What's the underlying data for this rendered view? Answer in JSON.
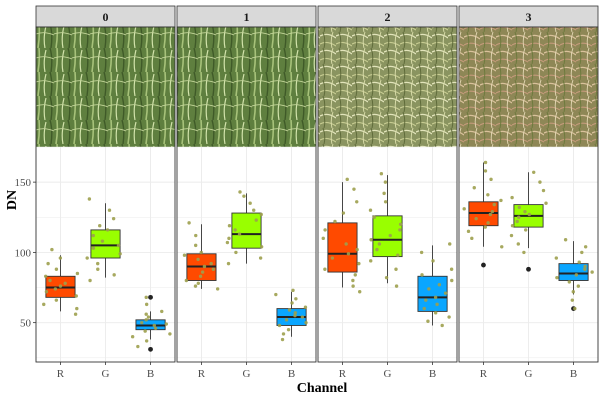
{
  "chart_data": {
    "type": "boxplot",
    "xlabel": "Channel",
    "ylabel": "DN",
    "ylim": [
      22,
      175
    ],
    "yticks": [
      50,
      100,
      150
    ],
    "categories": [
      "R",
      "G",
      "B"
    ],
    "grid": true,
    "colors": {
      "R": "#ff4a00",
      "G": "#99ff00",
      "B": "#0aa6ff",
      "jitter": "#9da04e",
      "outlier": "#222222"
    },
    "panels": [
      {
        "label": "0",
        "image": "crop-canopy-photo",
        "boxes": [
          {
            "channel": "R",
            "whisker_low": 58,
            "q1": 68,
            "median": 75,
            "q3": 83,
            "whisker_high": 98,
            "outliers": []
          },
          {
            "channel": "G",
            "whisker_low": 82,
            "q1": 96,
            "median": 105,
            "q3": 116,
            "whisker_high": 135,
            "outliers": []
          },
          {
            "channel": "B",
            "whisker_low": 38,
            "q1": 45,
            "median": 48,
            "q3": 52,
            "whisker_high": 58,
            "outliers": [
              31,
              68
            ]
          }
        ],
        "points": {
          "R": [
            56,
            60,
            63,
            66,
            69,
            72,
            74,
            76,
            78,
            80,
            83,
            85,
            88,
            92,
            96,
            102
          ],
          "G": [
            80,
            84,
            88,
            92,
            96,
            99,
            103,
            105,
            108,
            112,
            116,
            119,
            124,
            130,
            138
          ],
          "B": [
            33,
            37,
            40,
            42,
            44,
            46,
            48,
            49,
            50,
            52,
            54,
            56,
            58,
            63,
            68
          ]
        }
      },
      {
        "label": "1",
        "image": "crop-canopy-photo",
        "boxes": [
          {
            "channel": "R",
            "whisker_low": 74,
            "q1": 80,
            "median": 90,
            "q3": 99,
            "whisker_high": 120,
            "outliers": []
          },
          {
            "channel": "G",
            "whisker_low": 92,
            "q1": 103,
            "median": 113,
            "q3": 128,
            "whisker_high": 142,
            "outliers": []
          },
          {
            "channel": "B",
            "whisker_low": 40,
            "q1": 48,
            "median": 54,
            "q3": 60,
            "whisker_high": 72,
            "outliers": []
          }
        ],
        "points": {
          "R": [
            74,
            76,
            78,
            80,
            83,
            86,
            88,
            90,
            92,
            95,
            98,
            100,
            105,
            112,
            121
          ],
          "G": [
            92,
            96,
            100,
            104,
            107,
            110,
            113,
            116,
            119,
            123,
            127,
            130,
            135,
            140,
            143
          ],
          "B": [
            38,
            42,
            45,
            48,
            50,
            52,
            54,
            55,
            57,
            59,
            61,
            64,
            67,
            70,
            73
          ]
        }
      },
      {
        "label": "2",
        "image": "crop-canopy-photo",
        "boxes": [
          {
            "channel": "R",
            "whisker_low": 75,
            "q1": 86,
            "median": 99,
            "q3": 121,
            "whisker_high": 150,
            "outliers": []
          },
          {
            "channel": "G",
            "whisker_low": 78,
            "q1": 97,
            "median": 109,
            "q3": 126,
            "whisker_high": 155,
            "outliers": []
          },
          {
            "channel": "B",
            "whisker_low": 48,
            "q1": 58,
            "median": 68,
            "q3": 83,
            "whisker_high": 105,
            "outliers": []
          }
        ],
        "points": {
          "R": [
            72,
            76,
            80,
            84,
            88,
            92,
            96,
            99,
            102,
            106,
            110,
            116,
            122,
            128,
            136,
            145,
            152
          ],
          "G": [
            76,
            82,
            88,
            94,
            98,
            102,
            106,
            109,
            112,
            116,
            120,
            125,
            130,
            136,
            142,
            150,
            156
          ],
          "B": [
            48,
            51,
            54,
            57,
            60,
            63,
            66,
            68,
            71,
            74,
            77,
            80,
            84,
            88,
            94,
            100,
            106
          ]
        }
      },
      {
        "label": "3",
        "image": "crop-canopy-photo",
        "boxes": [
          {
            "channel": "R",
            "whisker_low": 104,
            "q1": 119,
            "median": 128,
            "q3": 136,
            "whisker_high": 164,
            "outliers": [
              91
            ]
          },
          {
            "channel": "G",
            "whisker_low": 103,
            "q1": 118,
            "median": 126,
            "q3": 134,
            "whisker_high": 157,
            "outliers": [
              88
            ]
          },
          {
            "channel": "B",
            "whisker_low": 70,
            "q1": 80,
            "median": 85,
            "q3": 92,
            "whisker_high": 108,
            "outliers": [
              60
            ]
          }
        ],
        "points": {
          "R": [
            104,
            110,
            115,
            118,
            121,
            124,
            127,
            129,
            131,
            134,
            137,
            141,
            146,
            152,
            158,
            164
          ],
          "G": [
            100,
            106,
            112,
            116,
            119,
            122,
            125,
            127,
            129,
            132,
            135,
            139,
            144,
            150,
            157
          ],
          "B": [
            60,
            66,
            72,
            76,
            79,
            82,
            84,
            86,
            88,
            90,
            93,
            96,
            100,
            104,
            109
          ]
        }
      }
    ]
  }
}
